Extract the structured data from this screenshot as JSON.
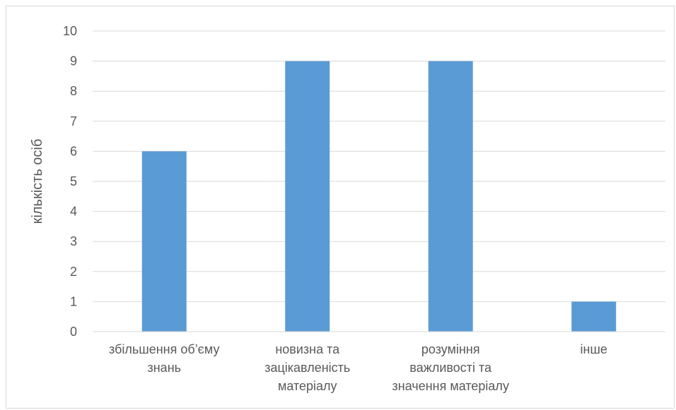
{
  "chart_data": {
    "type": "bar",
    "title": "",
    "xlabel": "",
    "ylabel": "кількість осіб",
    "ylim": [
      0,
      10
    ],
    "yticks": [
      0,
      1,
      2,
      3,
      4,
      5,
      6,
      7,
      8,
      9,
      10
    ],
    "grid": true,
    "categories": [
      [
        "збільшення об’єму",
        "знань"
      ],
      [
        "новизна та",
        "зацікавленість",
        "матеріалу"
      ],
      [
        "розуміння",
        "важливості та",
        "значення матеріалу"
      ],
      [
        "інше"
      ]
    ],
    "series": [
      {
        "values": [
          6,
          9,
          9,
          1
        ],
        "color": "#5b9bd5"
      }
    ],
    "colors": {
      "grid": "#d9d9d9",
      "axis": "#d9d9d9",
      "text": "#595959",
      "bar": "#5b9bd5"
    }
  }
}
